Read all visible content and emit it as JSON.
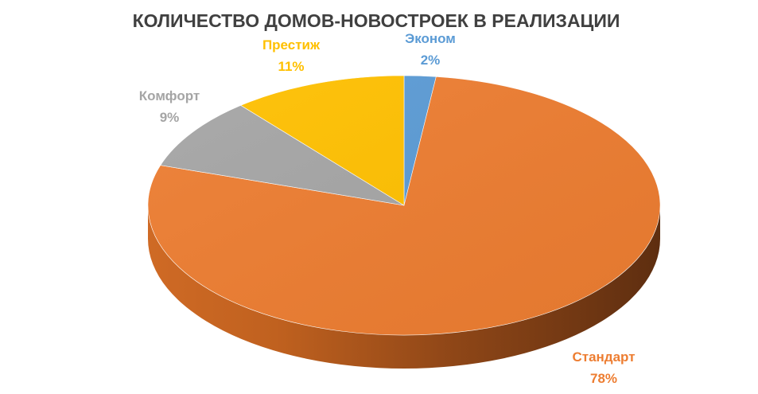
{
  "chart_data": {
    "type": "pie",
    "title": "КОЛИЧЕСТВО ДОМОВ-НОВОСТРОЕК В РЕАЛИЗАЦИИ",
    "categories": [
      "Эконом",
      "Стандарт",
      "Комфорт",
      "Престиж"
    ],
    "values": [
      2,
      78,
      9,
      11
    ],
    "value_labels": [
      "2%",
      "78%",
      "9%",
      "11%"
    ],
    "colors": [
      "#5b9bd5",
      "#ed7d31",
      "#a5a5a5",
      "#ffc000"
    ],
    "legend": "none",
    "style": "3d"
  }
}
